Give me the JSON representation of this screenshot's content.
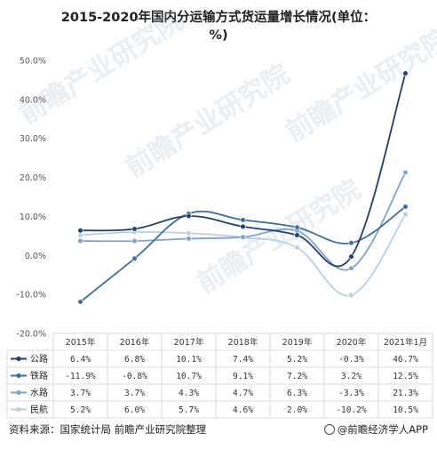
{
  "chart_data": {
    "type": "line",
    "title": "2015-2020年国内分运输方式货运量增长情况(单位：%)",
    "categories": [
      "2015年",
      "2016年",
      "2017年",
      "2018年",
      "2019年",
      "2020年",
      "2021年1月"
    ],
    "y_ticks": [
      "50.0%",
      "40.0%",
      "30.0%",
      "20.0%",
      "10.0%",
      "0.0%",
      "-10.0%",
      "-20.0%"
    ],
    "ylim": [
      -20,
      50
    ],
    "grid": false,
    "legend": "table-bottom",
    "series": [
      {
        "name": "公路",
        "color": "#1f3f6e",
        "values": [
          6.4,
          6.8,
          10.1,
          7.4,
          5.2,
          -0.3,
          46.7
        ],
        "labels": [
          "6.4%",
          "6.8%",
          "10.1%",
          "7.4%",
          "5.2%",
          "-0.3%",
          "46.7%"
        ]
      },
      {
        "name": "铁路",
        "color": "#3a6ea8",
        "values": [
          -11.9,
          -0.8,
          10.7,
          9.1,
          7.2,
          3.2,
          12.5
        ],
        "labels": [
          "-11.9%",
          "-0.8%",
          "10.7%",
          "9.1%",
          "7.2%",
          "3.2%",
          "12.5%"
        ]
      },
      {
        "name": "水路",
        "color": "#7da3cf",
        "values": [
          3.7,
          3.7,
          4.3,
          4.7,
          6.3,
          -3.3,
          21.3
        ],
        "labels": [
          "3.7%",
          "3.7%",
          "4.3%",
          "4.7%",
          "6.3%",
          "-3.3%",
          "21.3%"
        ]
      },
      {
        "name": "民航",
        "color": "#b9cfe6",
        "values": [
          5.2,
          6.0,
          5.7,
          4.6,
          2.0,
          -10.2,
          10.5
        ],
        "labels": [
          "5.2%",
          "6.0%",
          "5.7%",
          "4.6%",
          "2.0%",
          "-10.2%",
          "10.5%"
        ]
      }
    ]
  },
  "footer": {
    "source": "资料来源：国家统计局 前瞻产业研究院整理",
    "brand": "@前瞻经济学人APP"
  },
  "watermark": {
    "text": "前瞻产业研究院"
  }
}
